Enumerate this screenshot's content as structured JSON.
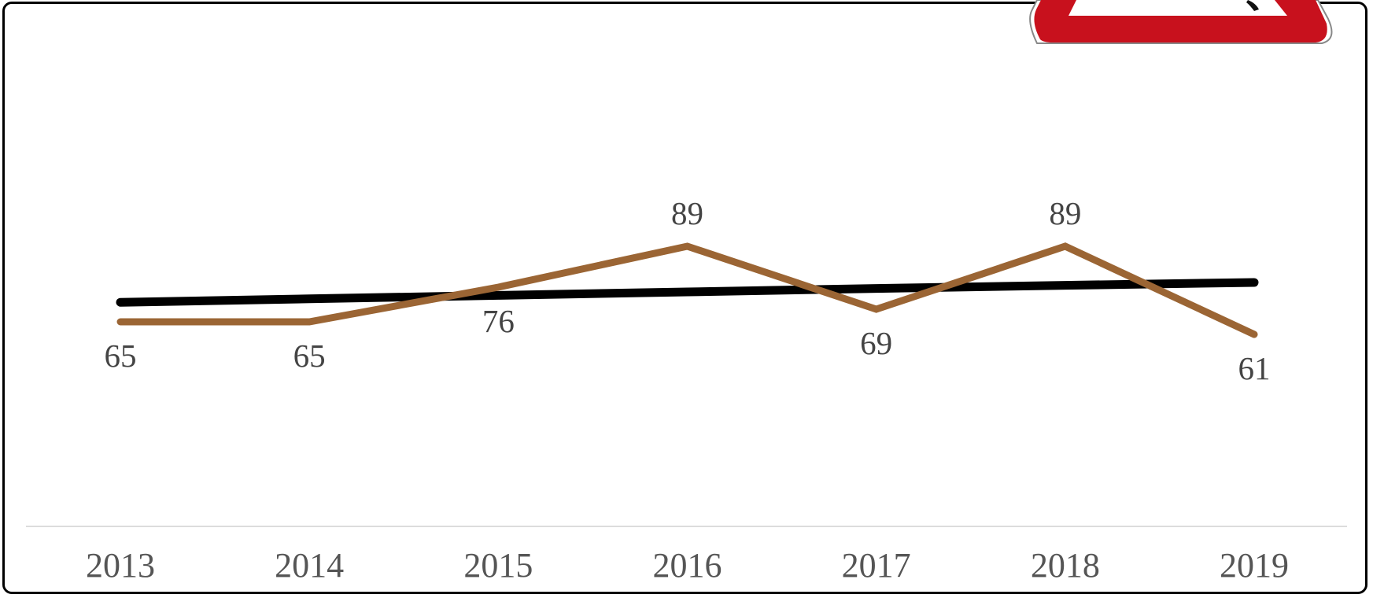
{
  "chart_data": {
    "type": "line",
    "categories": [
      "2013",
      "2014",
      "2015",
      "2016",
      "2017",
      "2018",
      "2019"
    ],
    "series": [
      {
        "values": [
          65,
          65,
          76,
          89,
          69,
          89,
          61
        ],
        "color": "#9b6534",
        "data_labels": true
      },
      {
        "type": "trendline",
        "values": [
          71.2,
          72.3,
          73.4,
          74.5,
          75.6,
          76.6,
          77.5
        ],
        "color": "#000000"
      }
    ],
    "ylim": [
      0,
      130
    ],
    "grid": false,
    "legend": "none"
  },
  "decoration": {
    "icon": "warning-sign-icon",
    "color": "#c8111d"
  }
}
